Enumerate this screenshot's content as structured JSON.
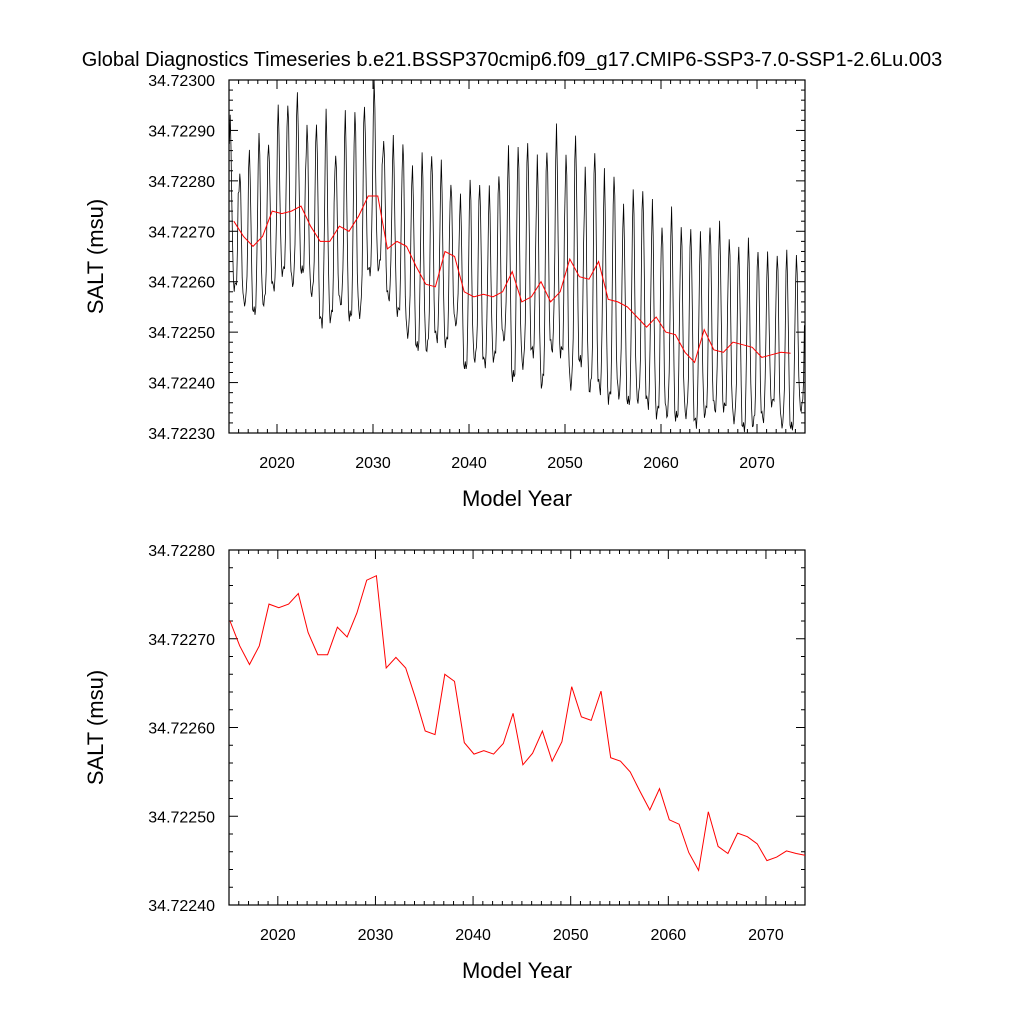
{
  "title": "Global Diagnostics Timeseries b.e21.BSSP370cmip6.f09_g17.CMIP6-SSP3-7.0-SSP1-2.6Lu.003",
  "chart_data": [
    {
      "type": "line",
      "xlabel": "Model Year",
      "ylabel": "SALT (msu)",
      "xlim": [
        2015,
        2075
      ],
      "ylim": [
        34.7223,
        34.723
      ],
      "x_ticks": [
        2020,
        2030,
        2040,
        2050,
        2060,
        2070
      ],
      "y_ticks": [
        "34.72230",
        "34.72240",
        "34.72250",
        "34.72260",
        "34.72270",
        "34.72280",
        "34.72290",
        "34.72300"
      ],
      "grid": false,
      "series": [
        {
          "color": "#000000",
          "style": "monthly",
          "x_start": 2015.04,
          "x_step": 0.0833,
          "annual_peaks": [
            34.72292,
            34.72282,
            34.72286,
            34.72289,
            34.72288,
            34.72294,
            34.72296,
            34.72297,
            34.72291,
            34.72292,
            34.72293,
            34.72286,
            34.72293,
            34.72294,
            34.72295,
            34.72299,
            34.72289,
            34.72288,
            34.72288,
            34.72283,
            34.72285,
            34.72286,
            34.72283,
            34.7228,
            34.72277,
            34.7228,
            34.7228,
            34.72278,
            34.72282,
            34.72286,
            34.72287,
            34.72288,
            34.72284,
            34.72287,
            34.7229,
            34.72286,
            34.72289,
            34.72282,
            34.72287,
            34.72281,
            34.72282,
            34.72275,
            34.72278,
            34.72279,
            34.72275,
            34.72272,
            34.72274,
            34.72271,
            34.72271,
            34.72269,
            34.72272,
            34.72271,
            34.72269,
            34.72267,
            34.72268,
            34.72267,
            34.72265,
            34.72266,
            34.72266,
            34.72265
          ],
          "annual_troughs": [
            34.72259,
            34.72256,
            34.72254,
            34.72256,
            34.72259,
            34.72262,
            34.7226,
            34.72262,
            34.72258,
            34.72252,
            34.72253,
            34.72256,
            34.72253,
            34.72254,
            34.72262,
            34.72263,
            34.72257,
            34.72254,
            34.7225,
            34.72247,
            34.72247,
            34.72249,
            34.72248,
            34.72252,
            34.72243,
            34.72245,
            34.72244,
            34.72245,
            34.72249,
            34.72241,
            34.72244,
            34.72246,
            34.7224,
            34.72247,
            34.72246,
            34.7224,
            34.72244,
            34.72239,
            34.72239,
            34.72237,
            34.72238,
            34.72236,
            34.72237,
            34.72236,
            34.72234,
            34.72234,
            34.72233,
            34.72234,
            34.72232,
            34.72234,
            34.72235,
            34.72235,
            34.72233,
            34.72231,
            34.72232,
            34.72233,
            34.72236,
            34.72232,
            34.72231,
            34.72235
          ]
        },
        {
          "color": "#ff0000",
          "style": "annual",
          "x": [
            2015.5,
            2016.5,
            2017.5,
            2018.5,
            2019.5,
            2020.5,
            2021.5,
            2022.5,
            2023.5,
            2024.5,
            2025.5,
            2026.5,
            2027.5,
            2028.5,
            2029.5,
            2030.5,
            2031.5,
            2032.5,
            2033.5,
            2034.5,
            2035.5,
            2036.5,
            2037.5,
            2038.5,
            2039.5,
            2040.5,
            2041.5,
            2042.5,
            2043.5,
            2044.5,
            2045.5,
            2046.5,
            2047.5,
            2048.5,
            2049.5,
            2050.5,
            2051.5,
            2052.5,
            2053.5,
            2054.5,
            2055.5,
            2056.5,
            2057.5,
            2058.5,
            2059.5,
            2060.5,
            2061.5,
            2062.5,
            2063.5,
            2064.5,
            2065.5,
            2066.5,
            2067.5,
            2068.5,
            2069.5,
            2070.5,
            2071.5,
            2072.5,
            2073.5
          ],
          "values": [
            34.72272,
            34.72269,
            34.72267,
            34.72269,
            34.72274,
            34.722735,
            34.72274,
            34.72275,
            34.72271,
            34.72268,
            34.72268,
            34.72271,
            34.7227,
            34.72273,
            34.72277,
            34.72277,
            34.722665,
            34.72268,
            34.72267,
            34.72263,
            34.722595,
            34.72259,
            34.72266,
            34.72265,
            34.72258,
            34.72257,
            34.722575,
            34.72257,
            34.72258,
            34.72262,
            34.72256,
            34.72257,
            34.7226,
            34.72256,
            34.72258,
            34.722645,
            34.72261,
            34.722605,
            34.72264,
            34.722565,
            34.72256,
            34.72255,
            34.72253,
            34.72251,
            34.72253,
            34.7225,
            34.722495,
            34.72246,
            34.72244,
            34.722505,
            34.722465,
            34.72246,
            34.72248,
            34.722475,
            34.72247,
            34.72245,
            34.722455,
            34.72246,
            34.722458
          ]
        }
      ]
    },
    {
      "type": "line",
      "xlabel": "Model Year",
      "ylabel": "SALT (msu)",
      "xlim": [
        2015,
        2074
      ],
      "ylim": [
        34.7224,
        34.7228
      ],
      "x_ticks": [
        2020,
        2030,
        2040,
        2050,
        2060,
        2070
      ],
      "y_ticks": [
        "34.72240",
        "34.72250",
        "34.72260",
        "34.72270",
        "34.72280"
      ],
      "grid": false,
      "series": [
        {
          "color": "#ff0000",
          "style": "annual",
          "x": [
            2015.1,
            2016.1,
            2017.1,
            2018.1,
            2019.1,
            2020.1,
            2021.1,
            2022.1,
            2023.1,
            2024.1,
            2025.1,
            2026.1,
            2027.1,
            2028.1,
            2029.1,
            2030.1,
            2031.1,
            2032.1,
            2033.1,
            2034.1,
            2035.1,
            2036.1,
            2037.1,
            2038.1,
            2039.1,
            2040.1,
            2041.1,
            2042.1,
            2043.1,
            2044.1,
            2045.1,
            2046.1,
            2047.1,
            2048.1,
            2049.1,
            2050.1,
            2051.1,
            2052.1,
            2053.1,
            2054.1,
            2055.1,
            2056.1,
            2057.1,
            2058.1,
            2059.1,
            2060.1,
            2061.1,
            2062.1,
            2063.1,
            2064.1,
            2065.1,
            2066.1,
            2067.1,
            2068.1,
            2069.1,
            2070.1,
            2071.1,
            2072.1,
            2073.1,
            2074.0
          ],
          "values": [
            34.72272,
            34.722692,
            34.722671,
            34.722692,
            34.722739,
            34.722735,
            34.722739,
            34.722751,
            34.722707,
            34.722682,
            34.722682,
            34.722713,
            34.722702,
            34.722729,
            34.722766,
            34.722771,
            34.722667,
            34.722679,
            34.722667,
            34.722633,
            34.722596,
            34.722592,
            34.72266,
            34.722652,
            34.722583,
            34.72257,
            34.722574,
            34.72257,
            34.722582,
            34.722616,
            34.722558,
            34.722571,
            34.722596,
            34.722562,
            34.722584,
            34.722646,
            34.722612,
            34.722608,
            34.722641,
            34.722566,
            34.722562,
            34.72255,
            34.722528,
            34.722507,
            34.722531,
            34.722496,
            34.722491,
            34.722459,
            34.722439,
            34.722505,
            34.722466,
            34.722458,
            34.722481,
            34.722477,
            34.722469,
            34.72245,
            34.722454,
            34.722461,
            34.722458,
            34.722456
          ]
        }
      ]
    }
  ]
}
